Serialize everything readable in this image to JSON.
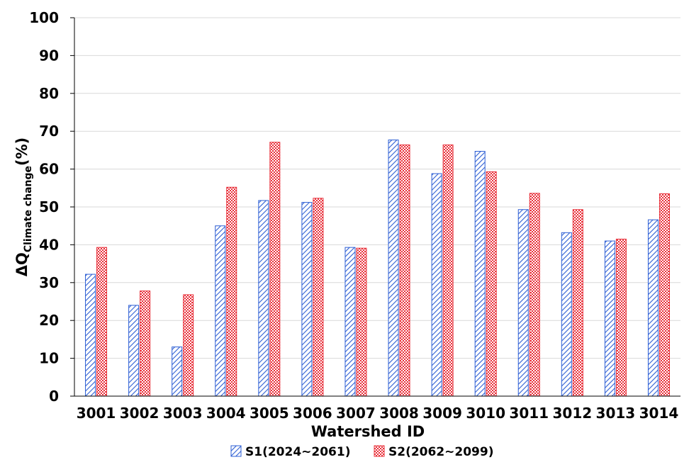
{
  "chart_data": {
    "type": "bar",
    "categories": [
      "3001",
      "3002",
      "3003",
      "3004",
      "3005",
      "3006",
      "3007",
      "3008",
      "3009",
      "3010",
      "3011",
      "3012",
      "3013",
      "3014"
    ],
    "series": [
      {
        "name": "S1(2024~2061)",
        "color": "#2e5fd4",
        "pattern": "diagonal-hatch",
        "values": [
          32.2,
          24.0,
          13.0,
          45.0,
          51.7,
          51.2,
          39.3,
          67.7,
          58.8,
          64.7,
          49.3,
          43.2,
          41.0,
          46.6
        ]
      },
      {
        "name": "S2(2062~2099)",
        "color": "#e8303a",
        "pattern": "checkerboard",
        "values": [
          39.3,
          27.8,
          26.8,
          55.2,
          67.1,
          52.3,
          39.1,
          66.4,
          66.4,
          59.3,
          53.6,
          49.3,
          41.5,
          53.5
        ]
      }
    ],
    "xlabel": "Watershed ID",
    "ylabel_main": "ΔQ",
    "ylabel_sub": "Climate change",
    "ylabel_unit": "(%)",
    "ylim": [
      0,
      100
    ],
    "yticks": [
      "0",
      "10",
      "20",
      "30",
      "40",
      "50",
      "60",
      "70",
      "80",
      "90",
      "100"
    ],
    "grid": true,
    "legend_position": "bottom"
  }
}
